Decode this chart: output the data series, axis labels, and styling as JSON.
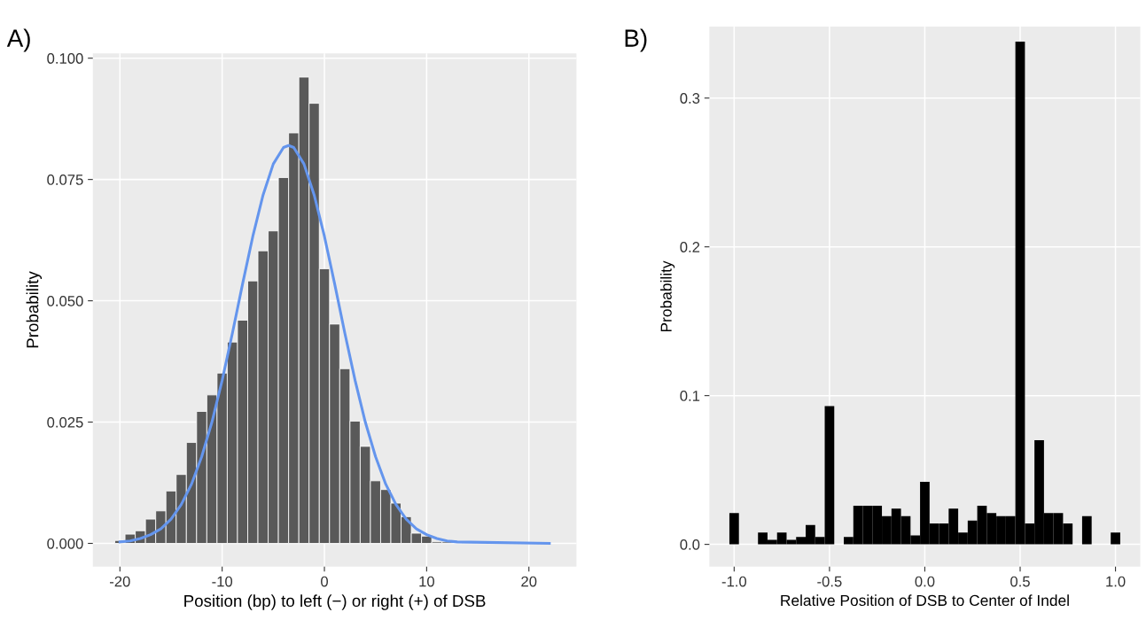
{
  "chart_data": [
    {
      "type": "histogram",
      "title": "A)",
      "xlabel": "Position (bp) to left (−) or right (+) of DSB",
      "ylabel": "Probability",
      "bins": [
        -20.5,
        -19.5,
        -18.5,
        -17.5,
        -16.5,
        -15.5,
        -14.5,
        -13.5,
        -12.5,
        -11.5,
        -10.5,
        -9.5,
        -8.5,
        -7.5,
        -6.5,
        -5.5,
        -4.5,
        -3.5,
        -2.5,
        -1.5,
        -0.5,
        0.5,
        1.5,
        2.5,
        3.5,
        4.5,
        5.5,
        6.5,
        7.5,
        8.5,
        9.5,
        10.5,
        11.5,
        12.5,
        13.5,
        14.5,
        15.5,
        16.5,
        17.5,
        18.5,
        19.5,
        20.5,
        21.5,
        22.5
      ],
      "values": [
        0.0006,
        0.0019,
        0.0026,
        0.005,
        0.0067,
        0.0108,
        0.0142,
        0.0208,
        0.0272,
        0.0306,
        0.0351,
        0.0415,
        0.046,
        0.0541,
        0.0603,
        0.0644,
        0.0754,
        0.0846,
        0.0961,
        0.0907,
        0.0566,
        0.0452,
        0.036,
        0.0252,
        0.02,
        0.0129,
        0.0111,
        0.0083,
        0.0055,
        0.0021,
        0.0015,
        0.0003,
        0.0003,
        null,
        0.0001,
        0.0001,
        0.0001,
        0.0001,
        0.0001,
        0.0001,
        0.0001,
        0.0001,
        null
      ],
      "color": "#595959",
      "series": [
        {
          "type": "line",
          "color": "#6495ed",
          "x": [
            -20,
            -19,
            -18,
            -17,
            -16,
            -15,
            -14,
            -13,
            -12,
            -11,
            -10,
            -9,
            -8,
            -7,
            -6,
            -5,
            -4,
            -3.5,
            -3,
            -2,
            -1,
            0,
            1,
            2,
            3,
            4,
            5,
            6,
            7,
            8,
            9,
            10,
            11,
            12,
            13,
            22
          ],
          "values": [
            0.0003,
            0.0005,
            0.001,
            0.0018,
            0.003,
            0.005,
            0.008,
            0.0122,
            0.0179,
            0.025,
            0.0336,
            0.0433,
            0.0535,
            0.0633,
            0.0718,
            0.0782,
            0.0816,
            0.082,
            0.0816,
            0.0782,
            0.0718,
            0.0633,
            0.0535,
            0.0433,
            0.0336,
            0.025,
            0.0179,
            0.0122,
            0.008,
            0.005,
            0.003,
            0.0018,
            0.001,
            0.0005,
            0.0003,
            0.0
          ]
        }
      ],
      "xlim": [
        -22.65,
        24.65
      ],
      "ylim": [
        -0.0048,
        0.101
      ],
      "xticks": [
        -20,
        -10,
        0,
        10,
        20
      ],
      "yticks": [
        {
          "value": 0,
          "label": "0.000"
        },
        {
          "value": 0.025,
          "label": "0.025"
        },
        {
          "value": 0.05,
          "label": "0.050"
        },
        {
          "value": 0.075,
          "label": "0.075"
        },
        {
          "value": 0.1,
          "label": "0.100"
        }
      ],
      "grid": true
    },
    {
      "type": "histogram",
      "title": "B)",
      "xlabel": "Relative Position of DSB to Center of Indel",
      "ylabel": "Probability",
      "bins": [
        -1.025,
        -0.975,
        -0.925,
        -0.875,
        -0.825,
        -0.775,
        -0.725,
        -0.675,
        -0.625,
        -0.575,
        -0.525,
        -0.475,
        -0.425,
        -0.375,
        -0.325,
        -0.275,
        -0.225,
        -0.175,
        -0.125,
        -0.075,
        -0.025,
        0.025,
        0.075,
        0.125,
        0.175,
        0.225,
        0.275,
        0.325,
        0.375,
        0.425,
        0.475,
        0.525,
        0.575,
        0.625,
        0.675,
        0.725,
        0.775,
        0.825,
        0.875,
        0.925,
        0.975,
        1.025
      ],
      "values": [
        0.021,
        0,
        0,
        0.008,
        0.003,
        0.008,
        0.003,
        0.005,
        0.013,
        0.005,
        0.093,
        0,
        0.005,
        0.026,
        0.026,
        0.026,
        0.019,
        0.024,
        0.019,
        0.006,
        0.042,
        0.014,
        0.014,
        0.024,
        0.008,
        0.016,
        0.026,
        0.021,
        0.019,
        0.019,
        0.338,
        0.014,
        0.07,
        0.021,
        0.021,
        0.014,
        0,
        0.019,
        0,
        0,
        0.008
      ],
      "color": "#000000",
      "xlim": [
        -1.13,
        1.13
      ],
      "ylim": [
        -0.015,
        0.348
      ],
      "xticks": [
        {
          "value": -1,
          "label": "-1.0"
        },
        {
          "value": -0.5,
          "label": "-0.5"
        },
        {
          "value": 0,
          "label": "0.0"
        },
        {
          "value": 0.5,
          "label": "0.5"
        },
        {
          "value": 1,
          "label": "1.0"
        }
      ],
      "yticks": [
        {
          "value": 0,
          "label": "0.0"
        },
        {
          "value": 0.1,
          "label": "0.1"
        },
        {
          "value": 0.2,
          "label": "0.2"
        },
        {
          "value": 0.3,
          "label": "0.3"
        }
      ],
      "grid": true
    }
  ]
}
